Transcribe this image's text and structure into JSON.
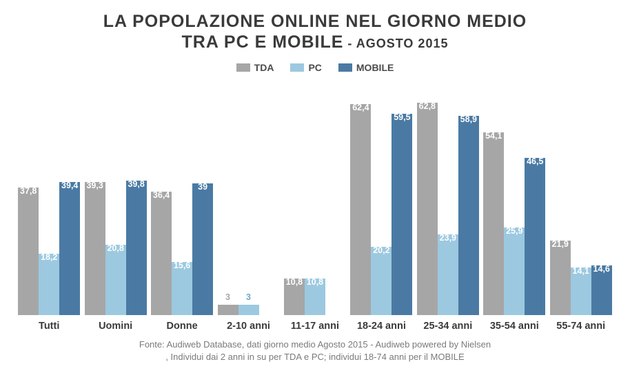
{
  "chart": {
    "type": "bar",
    "title_line1": "LA POPOLAZIONE ONLINE NEL GIORNO MEDIO",
    "title_line2": "TRA PC E MOBILE",
    "title_date": " - AGOSTO 2015",
    "title_color": "#3a3a3a",
    "title_fontsize": 25,
    "date_fontsize": 18,
    "background_color": "#ffffff",
    "ymax": 70,
    "series": [
      {
        "name": "TDA",
        "color": "#a6a6a6"
      },
      {
        "name": "PC",
        "color": "#9cc9e0"
      },
      {
        "name": "MOBILE",
        "color": "#4a7aa3"
      }
    ],
    "categories": [
      {
        "label": "Tutti",
        "values": [
          37.8,
          18.2,
          39.4
        ]
      },
      {
        "label": "Uomini",
        "values": [
          39.3,
          20.8,
          39.8
        ]
      },
      {
        "label": "Donne",
        "values": [
          36.4,
          15.6,
          39.0
        ]
      },
      {
        "label": "2-10 anni",
        "values": [
          3.0,
          3.0,
          null
        ]
      },
      {
        "label": "11-17 anni",
        "values": [
          10.8,
          10.8,
          null
        ]
      },
      {
        "label": "18-24 anni",
        "values": [
          62.4,
          20.2,
          59.5
        ]
      },
      {
        "label": "25-34 anni",
        "values": [
          62.8,
          23.9,
          58.9
        ]
      },
      {
        "label": "35-54 anni",
        "values": [
          54.1,
          25.9,
          46.5
        ]
      },
      {
        "label": "55-74 anni",
        "values": [
          21.9,
          14.1,
          14.6
        ]
      }
    ],
    "value_label_color": "#ffffff",
    "value_label_fontsize": 12.5,
    "x_label_fontsize": 14.5,
    "x_label_color": "#3a3a3a",
    "footnote_line1": "Fonte: Audiweb Database, dati giorno medio Agosto 2015 - Audiweb powered by Nielsen",
    "footnote_line2": ", Individui dai 2 anni in su per TDA e PC; individui 18-74 anni per il MOBILE",
    "footnote_color": "#7a7a7a",
    "footnote_fontsize": 13
  }
}
